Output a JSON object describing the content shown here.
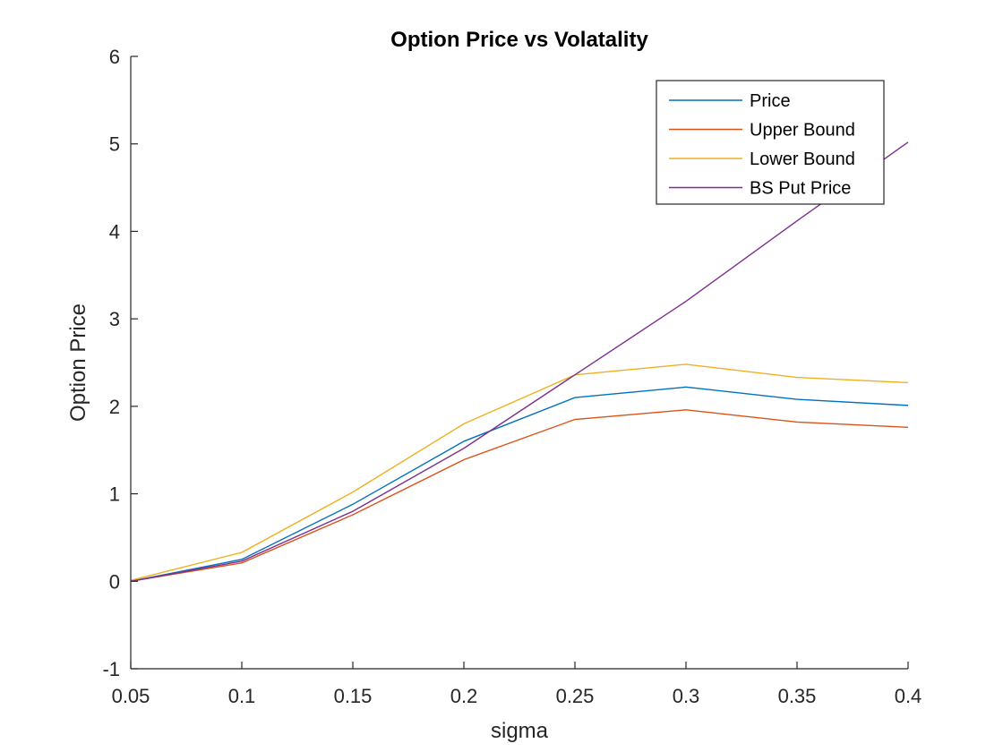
{
  "chart_data": {
    "type": "line",
    "title": "Option Price vs Volatality",
    "xlabel": "sigma",
    "ylabel": "Option Price",
    "xlim": [
      0.05,
      0.4
    ],
    "ylim": [
      -1,
      6
    ],
    "x_ticks": [
      0.05,
      0.1,
      0.15,
      0.2,
      0.25,
      0.3,
      0.35,
      0.4
    ],
    "y_ticks": [
      -1,
      0,
      1,
      2,
      3,
      4,
      5,
      6
    ],
    "x_tick_labels": [
      "0.05",
      "0.1",
      "0.15",
      "0.2",
      "0.25",
      "0.3",
      "0.35",
      "0.4"
    ],
    "y_tick_labels": [
      "-1",
      "0",
      "1",
      "2",
      "3",
      "4",
      "5",
      "6"
    ],
    "grid": false,
    "legend_position": "top-right",
    "x": [
      0.05,
      0.1,
      0.15,
      0.2,
      0.25,
      0.3,
      0.35,
      0.4
    ],
    "series": [
      {
        "name": "Price",
        "color": "#0072BD",
        "values": [
          0.0,
          0.25,
          0.88,
          1.6,
          2.1,
          2.22,
          2.08,
          2.01
        ]
      },
      {
        "name": "Upper Bound",
        "color": "#D95319",
        "values": [
          0.0,
          0.21,
          0.76,
          1.39,
          1.85,
          1.96,
          1.82,
          1.76
        ]
      },
      {
        "name": "Lower Bound",
        "color": "#EDB120",
        "values": [
          0.01,
          0.33,
          1.02,
          1.8,
          2.36,
          2.48,
          2.33,
          2.27
        ]
      },
      {
        "name": "BS Put Price",
        "color": "#7E2F8E",
        "values": [
          0.0,
          0.23,
          0.8,
          1.52,
          2.36,
          3.2,
          4.12,
          5.02
        ]
      }
    ]
  }
}
